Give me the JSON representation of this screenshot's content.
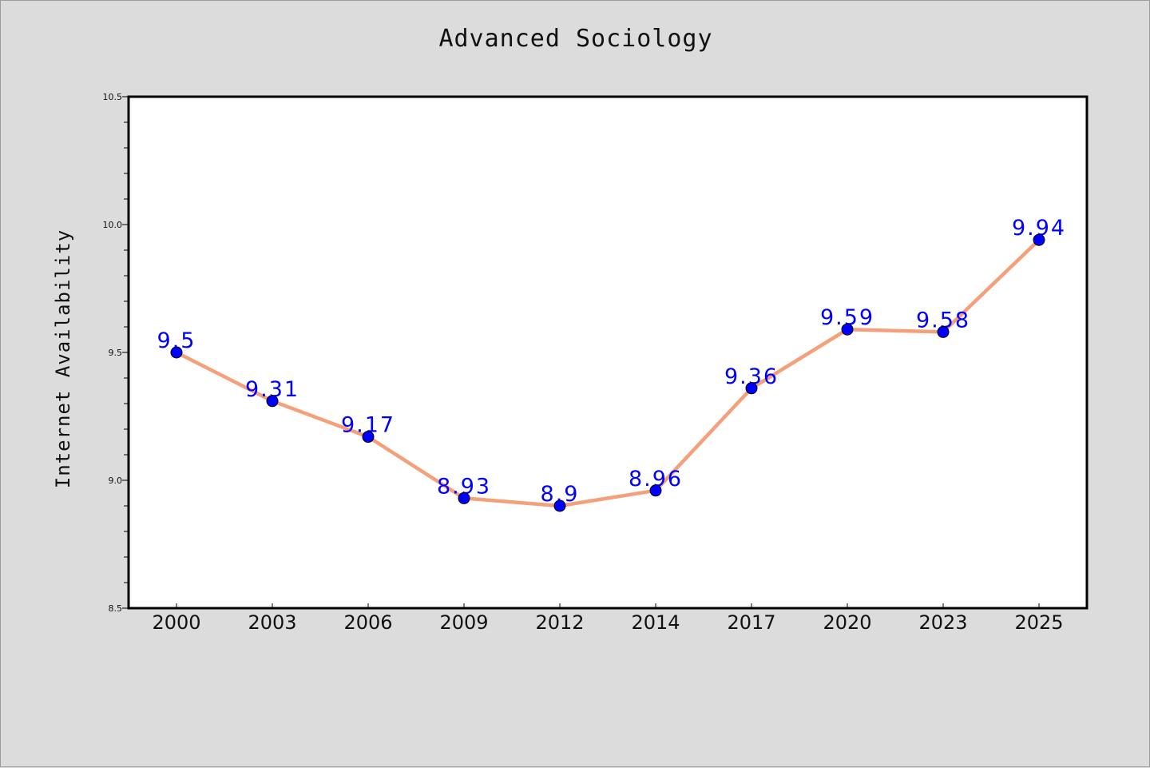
{
  "chart_data": {
    "type": "line",
    "title": "Advanced Sociology",
    "xlabel": "",
    "ylabel": "Internet Availability",
    "categories": [
      "2000",
      "2003",
      "2006",
      "2009",
      "2012",
      "2014",
      "2017",
      "2020",
      "2023",
      "2025"
    ],
    "series": [
      {
        "values": [
          9.5,
          9.31,
          9.17,
          8.93,
          8.9,
          8.96,
          9.36,
          9.59,
          9.58,
          9.94
        ],
        "labels": [
          "9.5",
          "9.31",
          "9.17",
          "8.93",
          "8.9",
          "8.96",
          "9.36",
          "9.59",
          "9.58",
          "9.94"
        ],
        "line_color": "#f4a07a",
        "marker_color": "#0000ff"
      }
    ],
    "ylim": [
      8.5,
      10.5
    ],
    "yticks": [
      "8.5",
      "9.0",
      "9.5",
      "10.0",
      "10.5"
    ],
    "ytick_values": [
      8.5,
      9.0,
      9.5,
      10.0,
      10.5
    ],
    "label_color": "#0000ff",
    "grid": false,
    "legend": "none",
    "background": "#dcdcdc",
    "plot_background": "#ffffff"
  }
}
